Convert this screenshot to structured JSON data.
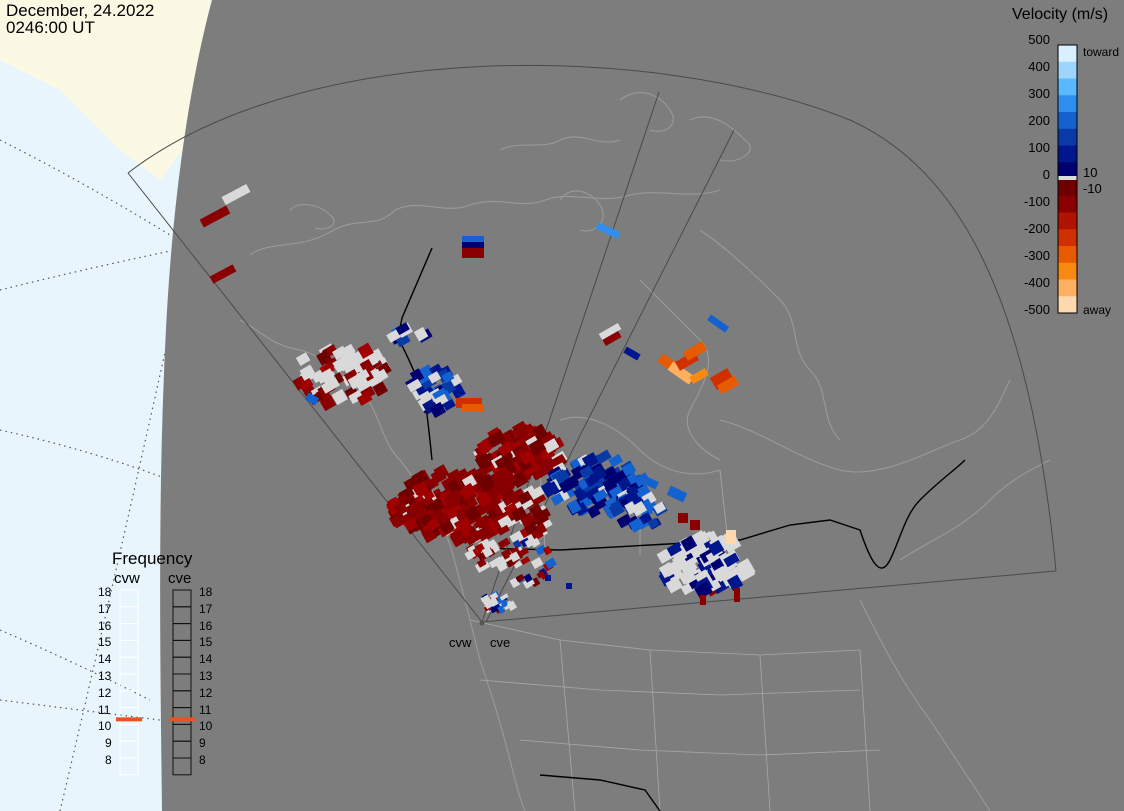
{
  "header": {
    "date": "December, 24.2022",
    "time": "0246:00 UT"
  },
  "color_scale": {
    "title": "Velocity (m/s)",
    "ticks": [
      "500",
      "400",
      "300",
      "200",
      "100",
      "10",
      "0",
      "-10",
      "-100",
      "-200",
      "-300",
      "-400",
      "-500"
    ],
    "toward_label": "toward",
    "away_label": "away",
    "colors": [
      "#d8f0ff",
      "#9cd6ff",
      "#5ab8ff",
      "#2f8ff0",
      "#1462d0",
      "#0a3aa6",
      "#00168c",
      "#000070",
      "#700000",
      "#8a0000",
      "#b01400",
      "#d03000",
      "#e85a00",
      "#f88a10",
      "#ffb060",
      "#ffd8b0"
    ],
    "zero_band_color": "#dddddd"
  },
  "frequency": {
    "title": "Frequency",
    "radars": [
      {
        "label": "cvw",
        "value_mhz": 11,
        "box_color": "#ffffff"
      },
      {
        "label": "cve",
        "value_mhz": 11,
        "box_color": "#111111"
      }
    ],
    "levels": [
      "18",
      "17",
      "16",
      "15",
      "14",
      "13",
      "12",
      "11",
      "10",
      "9",
      "8"
    ],
    "marker_color": "#e8531f"
  },
  "map": {
    "radar_labels": [
      "cvw",
      "cve"
    ],
    "ground_color": "#7d7d7d",
    "night_color": "#e8f5fd",
    "day_color": "#fbf8e4",
    "coast_color": "#9a9a9a",
    "border_color": "#000000",
    "gray_cell_color": "#d9d9d9"
  }
}
